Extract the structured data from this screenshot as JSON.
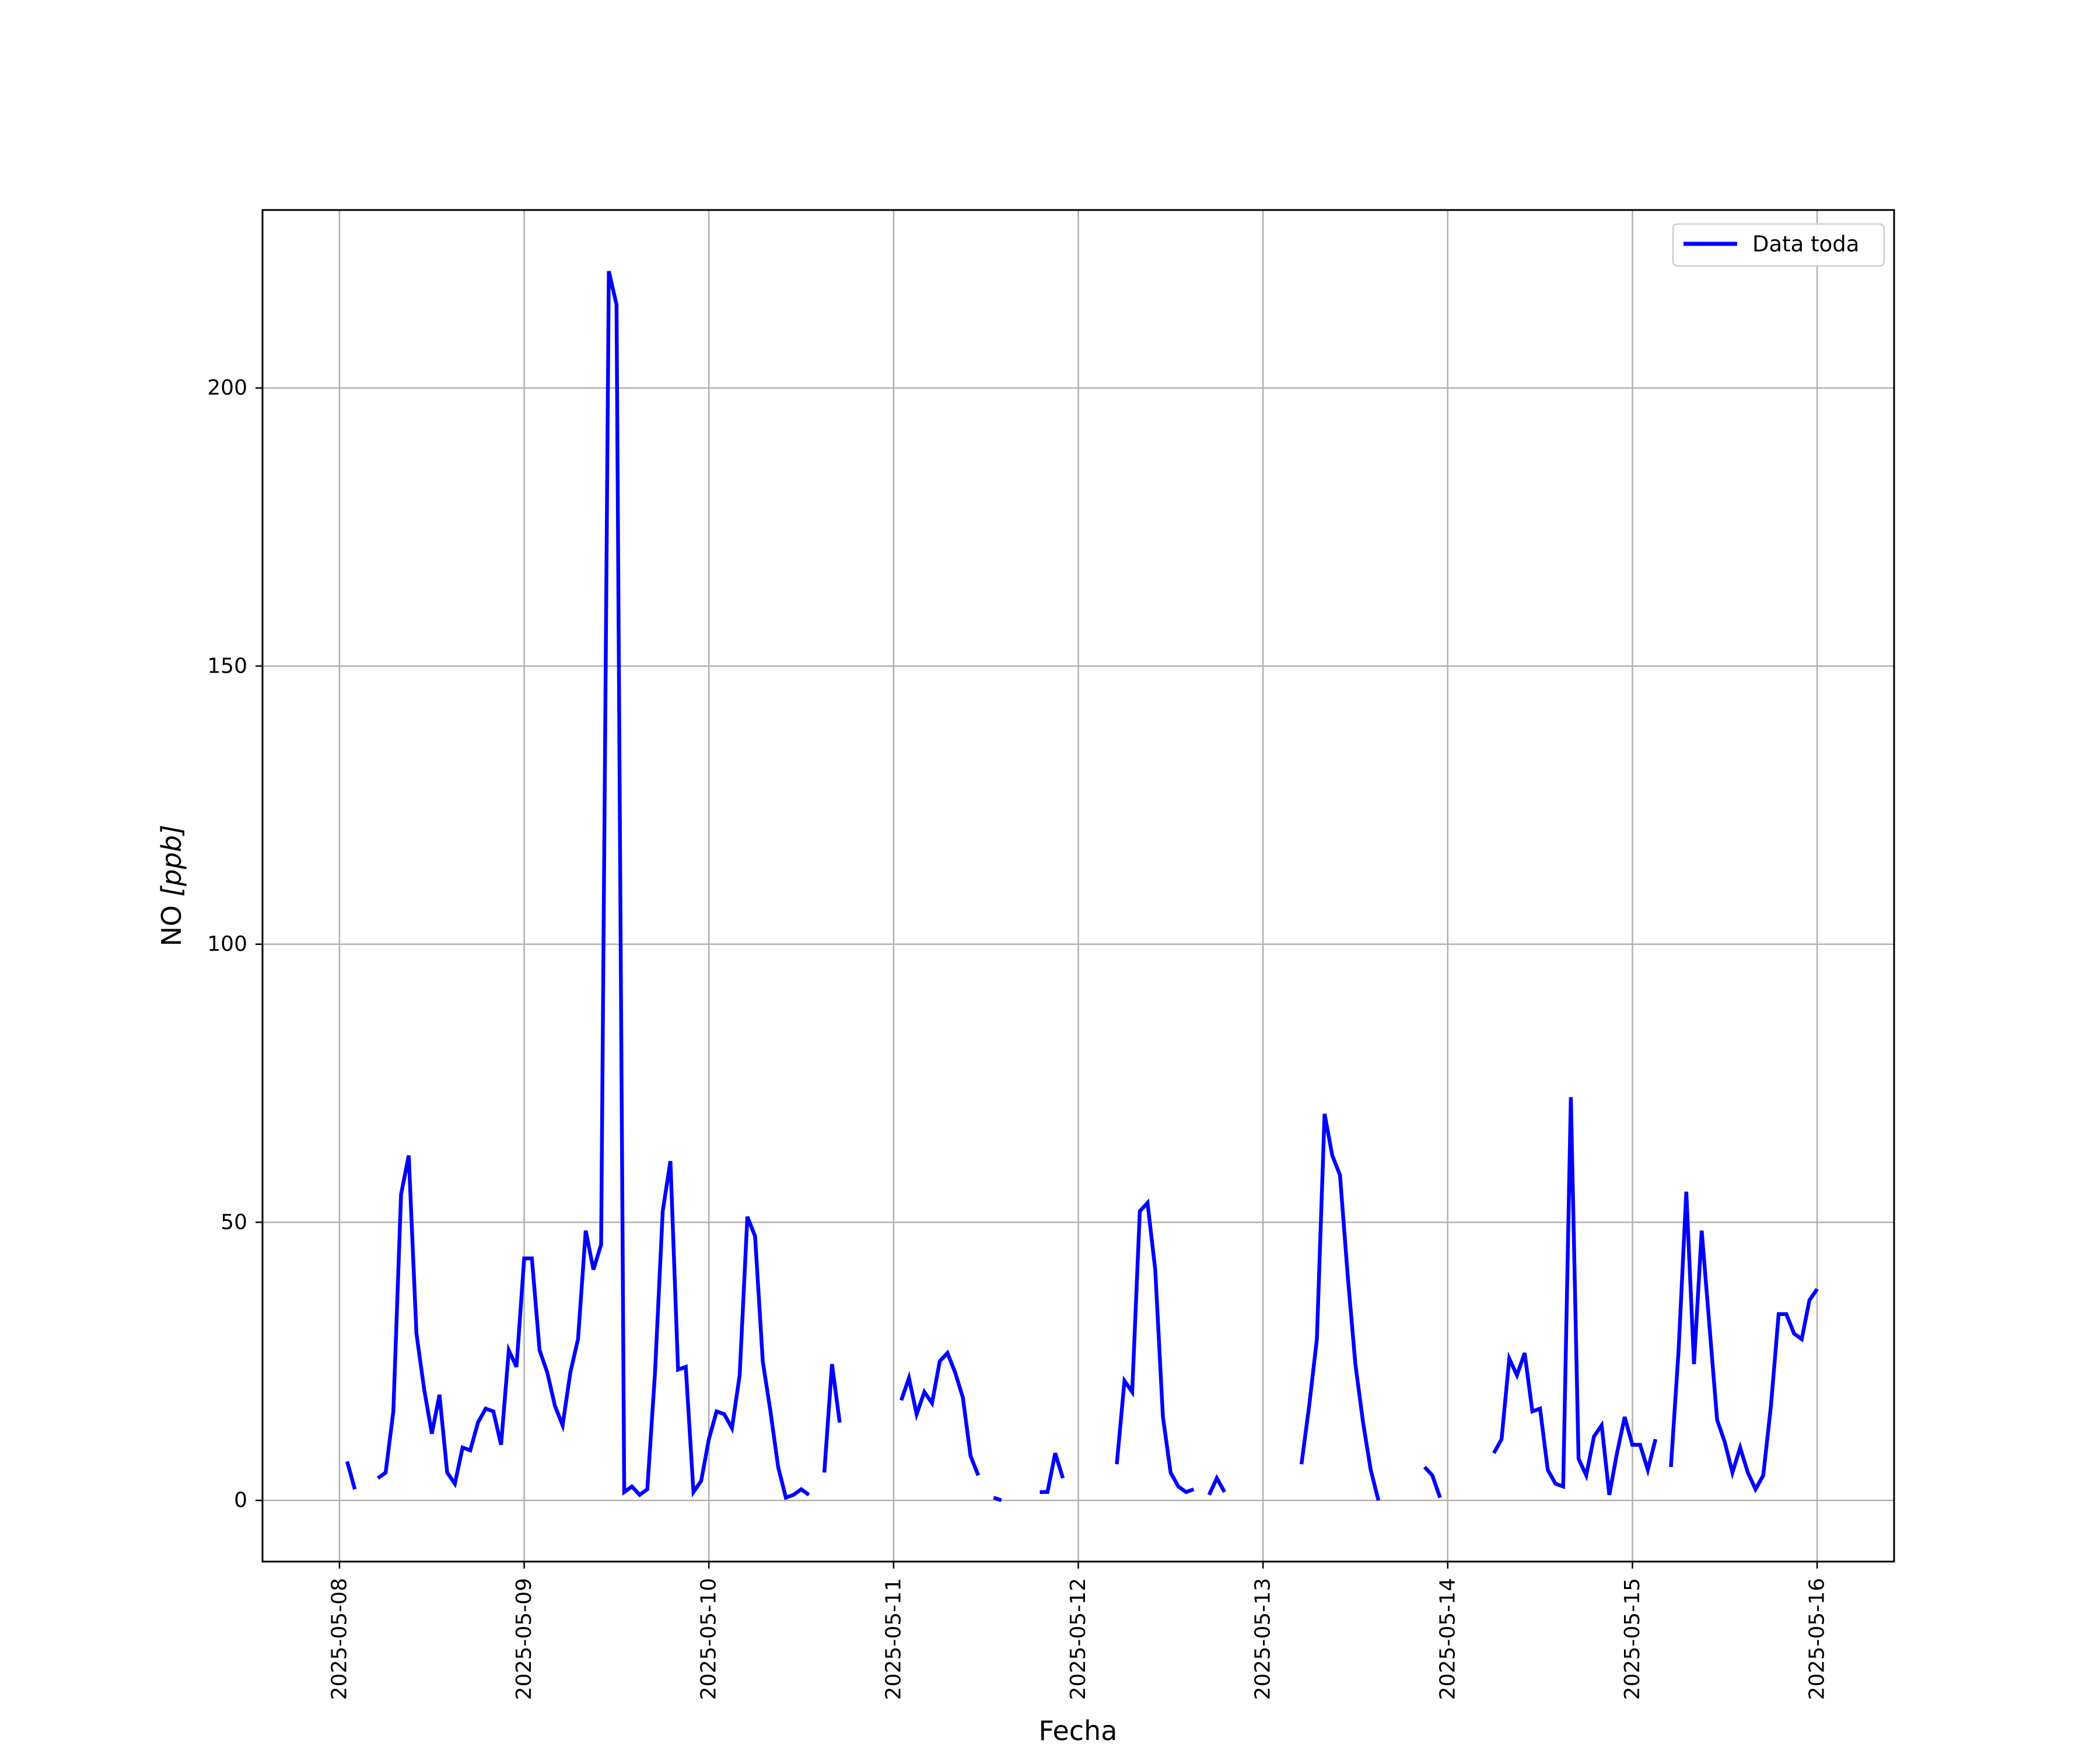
{
  "colors": {
    "series": "#0000ff",
    "grid": "#b0b0b0",
    "axes": "#000000",
    "background": "#ffffff"
  },
  "chart_data": {
    "type": "line",
    "title": "",
    "xlabel": "Fecha",
    "ylabel_text": "NO",
    "ylabel_unit": "[ppb]",
    "xlim": [
      "2025-05-07 14:00",
      "2025-05-16 10:00"
    ],
    "ylim": [
      -11,
      232
    ],
    "x_ticks": [
      "2025-05-08",
      "2025-05-09",
      "2025-05-10",
      "2025-05-11",
      "2025-05-12",
      "2025-05-13",
      "2025-05-14",
      "2025-05-15",
      "2025-05-16"
    ],
    "y_ticks": [
      0,
      50,
      100,
      150,
      200
    ],
    "grid": true,
    "legend_position": "upper right",
    "series": [
      {
        "name": "Data toda",
        "color": "#0000ff",
        "segments": [
          [
            [
              "2025-05-08 01:00",
              7
            ],
            [
              "2025-05-08 02:00",
              2
            ]
          ],
          [
            [
              "2025-05-08 05:00",
              4
            ],
            [
              "2025-05-08 06:00",
              5
            ],
            [
              "2025-05-08 07:00",
              16
            ],
            [
              "2025-05-08 08:00",
              55
            ],
            [
              "2025-05-08 09:00",
              62
            ],
            [
              "2025-05-08 10:00",
              30
            ],
            [
              "2025-05-08 11:00",
              20
            ],
            [
              "2025-05-08 12:00",
              12
            ],
            [
              "2025-05-08 13:00",
              19
            ],
            [
              "2025-05-08 14:00",
              5
            ],
            [
              "2025-05-08 15:00",
              3
            ],
            [
              "2025-05-08 16:00",
              9.5
            ],
            [
              "2025-05-08 17:00",
              9
            ],
            [
              "2025-05-08 18:00",
              14
            ],
            [
              "2025-05-08 19:00",
              16.5
            ],
            [
              "2025-05-08 20:00",
              16
            ],
            [
              "2025-05-08 21:00",
              10
            ],
            [
              "2025-05-08 22:00",
              27
            ],
            [
              "2025-05-08 23:00",
              24
            ],
            [
              "2025-05-09 00:00",
              43.5
            ],
            [
              "2025-05-09 01:00",
              43.5
            ],
            [
              "2025-05-09 02:00",
              27
            ],
            [
              "2025-05-09 03:00",
              23
            ],
            [
              "2025-05-09 04:00",
              17
            ],
            [
              "2025-05-09 05:00",
              13.5
            ],
            [
              "2025-05-09 06:00",
              23
            ],
            [
              "2025-05-09 07:00",
              29
            ],
            [
              "2025-05-09 08:00",
              48.5
            ],
            [
              "2025-05-09 09:00",
              41.5
            ],
            [
              "2025-05-09 10:00",
              46
            ],
            [
              "2025-05-09 11:00",
              221
            ],
            [
              "2025-05-09 12:00",
              215
            ],
            [
              "2025-05-09 13:00",
              1.5
            ],
            [
              "2025-05-09 14:00",
              2.5
            ],
            [
              "2025-05-09 15:00",
              1
            ],
            [
              "2025-05-09 16:00",
              2
            ],
            [
              "2025-05-09 17:00",
              23
            ],
            [
              "2025-05-09 18:00",
              52
            ],
            [
              "2025-05-09 19:00",
              61
            ],
            [
              "2025-05-09 20:00",
              23.5
            ],
            [
              "2025-05-09 21:00",
              24
            ],
            [
              "2025-05-09 22:00",
              1.5
            ],
            [
              "2025-05-09 23:00",
              3.5
            ],
            [
              "2025-05-10 00:00",
              11
            ],
            [
              "2025-05-10 01:00",
              16
            ],
            [
              "2025-05-10 02:00",
              15.5
            ],
            [
              "2025-05-10 03:00",
              13
            ],
            [
              "2025-05-10 04:00",
              22.5
            ],
            [
              "2025-05-10 05:00",
              51
            ],
            [
              "2025-05-10 06:00",
              47.5
            ],
            [
              "2025-05-10 07:00",
              25
            ],
            [
              "2025-05-10 08:00",
              16
            ],
            [
              "2025-05-10 09:00",
              6
            ],
            [
              "2025-05-10 10:00",
              0.5
            ],
            [
              "2025-05-10 11:00",
              1
            ],
            [
              "2025-05-10 12:00",
              2
            ],
            [
              "2025-05-10 13:00",
              1
            ]
          ],
          [
            [
              "2025-05-10 15:00",
              5
            ],
            [
              "2025-05-10 16:00",
              24.5
            ],
            [
              "2025-05-10 17:00",
              14
            ]
          ],
          [
            [
              "2025-05-11 01:00",
              18
            ],
            [
              "2025-05-11 02:00",
              22
            ],
            [
              "2025-05-11 03:00",
              15.5
            ],
            [
              "2025-05-11 04:00",
              19.5
            ],
            [
              "2025-05-11 05:00",
              17.5
            ],
            [
              "2025-05-11 06:00",
              25
            ],
            [
              "2025-05-11 07:00",
              26.5
            ],
            [
              "2025-05-11 08:00",
              23
            ],
            [
              "2025-05-11 09:00",
              18.5
            ],
            [
              "2025-05-11 10:00",
              8
            ],
            [
              "2025-05-11 11:00",
              4.5
            ]
          ],
          [
            [
              "2025-05-11 13:00",
              0.5
            ],
            [
              "2025-05-11 14:00",
              0
            ]
          ],
          [
            [
              "2025-05-11 19:00",
              1.5
            ],
            [
              "2025-05-11 20:00",
              1.5
            ],
            [
              "2025-05-11 21:00",
              8.5
            ],
            [
              "2025-05-11 22:00",
              4
            ]
          ],
          [
            [
              "2025-05-12 05:00",
              6.5
            ],
            [
              "2025-05-12 06:00",
              21.5
            ],
            [
              "2025-05-12 07:00",
              19.5
            ],
            [
              "2025-05-12 08:00",
              52
            ],
            [
              "2025-05-12 09:00",
              53.5
            ],
            [
              "2025-05-12 10:00",
              41.5
            ],
            [
              "2025-05-12 11:00",
              15
            ],
            [
              "2025-05-12 12:00",
              5
            ],
            [
              "2025-05-12 13:00",
              2.5
            ],
            [
              "2025-05-12 14:00",
              1.5
            ],
            [
              "2025-05-12 15:00",
              2
            ]
          ],
          [
            [
              "2025-05-12 17:00",
              1
            ],
            [
              "2025-05-12 18:00",
              4
            ],
            [
              "2025-05-12 19:00",
              1.5
            ]
          ],
          [
            [
              "2025-05-13 05:00",
              6.5
            ],
            [
              "2025-05-13 06:00",
              17
            ],
            [
              "2025-05-13 07:00",
              29
            ],
            [
              "2025-05-13 08:00",
              69.5
            ],
            [
              "2025-05-13 09:00",
              62
            ],
            [
              "2025-05-13 10:00",
              58.5
            ],
            [
              "2025-05-13 11:00",
              40.5
            ],
            [
              "2025-05-13 12:00",
              24.5
            ],
            [
              "2025-05-13 13:00",
              14
            ],
            [
              "2025-05-13 14:00",
              5.5
            ],
            [
              "2025-05-13 15:00",
              0
            ]
          ],
          [
            [
              "2025-05-13 21:00",
              6
            ],
            [
              "2025-05-13 22:00",
              4.5
            ],
            [
              "2025-05-13 23:00",
              0.5
            ]
          ],
          [
            [
              "2025-05-14 06:00",
              8.5
            ],
            [
              "2025-05-14 07:00",
              11
            ],
            [
              "2025-05-14 08:00",
              25.5
            ],
            [
              "2025-05-14 09:00",
              22.5
            ],
            [
              "2025-05-14 10:00",
              26.5
            ],
            [
              "2025-05-14 11:00",
              16
            ],
            [
              "2025-05-14 12:00",
              16.5
            ],
            [
              "2025-05-14 13:00",
              5.5
            ],
            [
              "2025-05-14 14:00",
              3
            ],
            [
              "2025-05-14 15:00",
              2.5
            ],
            [
              "2025-05-14 16:00",
              72.5
            ],
            [
              "2025-05-14 17:00",
              7.5
            ],
            [
              "2025-05-14 18:00",
              4.5
            ],
            [
              "2025-05-14 19:00",
              11.5
            ],
            [
              "2025-05-14 20:00",
              13.5
            ],
            [
              "2025-05-14 21:00",
              1
            ],
            [
              "2025-05-14 22:00",
              8.5
            ],
            [
              "2025-05-14 23:00",
              15
            ],
            [
              "2025-05-15 00:00",
              10
            ],
            [
              "2025-05-15 01:00",
              10
            ],
            [
              "2025-05-15 02:00",
              5.5
            ],
            [
              "2025-05-15 03:00",
              11
            ]
          ],
          [
            [
              "2025-05-15 05:00",
              6
            ],
            [
              "2025-05-15 06:00",
              27
            ],
            [
              "2025-05-15 07:00",
              55.5
            ],
            [
              "2025-05-15 08:00",
              24.5
            ],
            [
              "2025-05-15 09:00",
              48.5
            ],
            [
              "2025-05-15 10:00",
              31.5
            ],
            [
              "2025-05-15 11:00",
              14.5
            ],
            [
              "2025-05-15 12:00",
              10.5
            ],
            [
              "2025-05-15 13:00",
              5
            ],
            [
              "2025-05-15 14:00",
              9.5
            ],
            [
              "2025-05-15 15:00",
              5
            ],
            [
              "2025-05-15 16:00",
              2
            ],
            [
              "2025-05-15 17:00",
              4.5
            ],
            [
              "2025-05-15 18:00",
              17
            ],
            [
              "2025-05-15 19:00",
              33.5
            ],
            [
              "2025-05-15 20:00",
              33.5
            ],
            [
              "2025-05-15 21:00",
              30
            ],
            [
              "2025-05-15 22:00",
              29
            ],
            [
              "2025-05-15 23:00",
              36
            ],
            [
              "2025-05-16 00:00",
              38
            ]
          ]
        ]
      }
    ]
  }
}
